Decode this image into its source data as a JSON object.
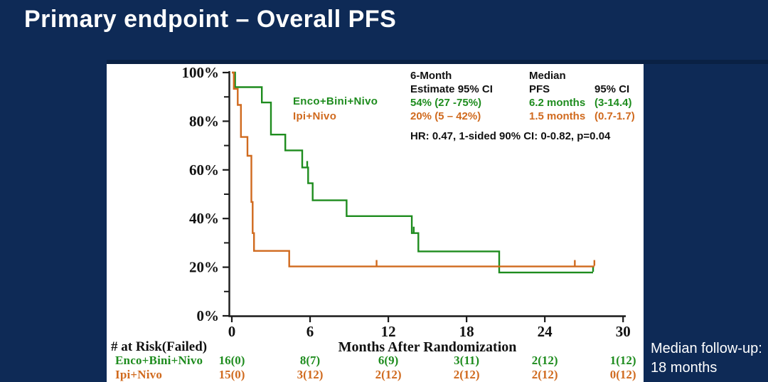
{
  "title": "Primary endpoint – Overall PFS",
  "colors": {
    "background": "#0E2A56",
    "top_strip": "#0A2144",
    "panel": "#FFFFFF",
    "green": "#1E8C1E",
    "orange": "#D06A1E",
    "axis": "#1A1A1A",
    "text": "#111111",
    "white_text": "#FFFFFF"
  },
  "legend": {
    "items": [
      {
        "label": "Enco+Bini+Nivo",
        "color_key": "green"
      },
      {
        "label": "Ipi+Nivo",
        "color_key": "orange"
      }
    ]
  },
  "stats": {
    "col1_header_line1": "6-Month",
    "col1_header_line2": "Estimate 95% CI",
    "col1_value_green": "54% (27 -75%)",
    "col1_value_orange": "20% (5 – 42%)",
    "col2_header_line1": "Median",
    "col2_header_line2": "PFS",
    "col3_header_line2": "95% CI",
    "col2_value_green": "6.2 months",
    "col3_value_green": "(3-14.4)",
    "col2_value_orange": "1.5 months",
    "col3_value_orange": "(0.7-1.7)",
    "hr_line": "HR: 0.47, 1-sided 90% CI: 0-0.82, p=0.04"
  },
  "chart_data": {
    "type": "line",
    "subtype": "kaplan-meier-step",
    "xlabel": "Months After Randomization",
    "ylabel": "",
    "xlim": [
      0,
      30
    ],
    "ylim": [
      0,
      100
    ],
    "x_ticks": [
      {
        "v": 0,
        "label": "0"
      },
      {
        "v": 6,
        "label": "6"
      },
      {
        "v": 12,
        "label": "12"
      },
      {
        "v": 18,
        "label": "18"
      },
      {
        "v": 24,
        "label": "24"
      },
      {
        "v": 30,
        "label": "30"
      }
    ],
    "y_ticks": [
      {
        "v": 0,
        "label": "0%"
      },
      {
        "v": 20,
        "label": "20%"
      },
      {
        "v": 40,
        "label": "40%"
      },
      {
        "v": 60,
        "label": "60%"
      },
      {
        "v": 80,
        "label": "80%"
      },
      {
        "v": 100,
        "label": "100%"
      }
    ],
    "y_minor_ticks": [
      10,
      30,
      50,
      70,
      90
    ],
    "grid": false,
    "series": [
      {
        "name": "Enco+Bini+Nivo",
        "color_key": "green",
        "points": [
          [
            0,
            100
          ],
          [
            0.25,
            100
          ],
          [
            0.25,
            94
          ],
          [
            2.3,
            94
          ],
          [
            2.3,
            87.7
          ],
          [
            3.0,
            87.7
          ],
          [
            3.0,
            74.5
          ],
          [
            4.1,
            74.5
          ],
          [
            4.1,
            68
          ],
          [
            5.4,
            68
          ],
          [
            5.4,
            61
          ],
          [
            5.85,
            61
          ],
          [
            5.85,
            54.5
          ],
          [
            6.2,
            54.5
          ],
          [
            6.2,
            47.5
          ],
          [
            8.8,
            47.5
          ],
          [
            8.8,
            41
          ],
          [
            13.8,
            41
          ],
          [
            13.8,
            34
          ],
          [
            14.3,
            34
          ],
          [
            14.3,
            26.5
          ],
          [
            20.5,
            26.5
          ],
          [
            20.5,
            17.8
          ],
          [
            27.7,
            17.8
          ]
        ],
        "censor_marks": [
          [
            5.78,
            61
          ],
          [
            13.95,
            34
          ],
          [
            27.7,
            17.8
          ]
        ]
      },
      {
        "name": "Ipi+Nivo",
        "color_key": "orange",
        "points": [
          [
            0,
            100
          ],
          [
            0.15,
            100
          ],
          [
            0.15,
            93.3
          ],
          [
            0.45,
            93.3
          ],
          [
            0.45,
            86.7
          ],
          [
            0.7,
            86.7
          ],
          [
            0.7,
            73.5
          ],
          [
            1.2,
            73.5
          ],
          [
            1.2,
            65.8
          ],
          [
            1.5,
            65.8
          ],
          [
            1.5,
            46.8
          ],
          [
            1.6,
            46.8
          ],
          [
            1.6,
            34
          ],
          [
            1.7,
            34
          ],
          [
            1.7,
            26.7
          ],
          [
            4.4,
            26.7
          ],
          [
            4.4,
            20.3
          ],
          [
            27.8,
            20.3
          ]
        ],
        "censor_marks": [
          [
            11.1,
            20.3
          ],
          [
            26.3,
            20.3
          ],
          [
            27.8,
            20.3
          ]
        ]
      }
    ]
  },
  "risk_table": {
    "heading": "# at Risk(Failed)",
    "columns_months": [
      0,
      6,
      12,
      18,
      24,
      30
    ],
    "rows": [
      {
        "label": "Enco+Bini+Nivo",
        "color_key": "green",
        "values": [
          "16(0)",
          "8(7)",
          "6(9)",
          "3(11)",
          "2(12)",
          "1(12)"
        ]
      },
      {
        "label": "Ipi+Nivo",
        "color_key": "orange",
        "values": [
          "15(0)",
          "3(12)",
          "2(12)",
          "2(12)",
          "2(12)",
          "0(12)"
        ]
      }
    ]
  },
  "footnote": {
    "line1": "Median follow-up:",
    "line2": "18 months"
  }
}
